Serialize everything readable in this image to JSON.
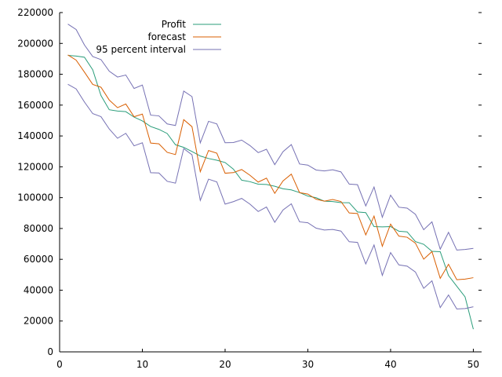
{
  "chart_data": {
    "type": "line",
    "xlim": [
      0,
      51
    ],
    "ylim": [
      0,
      220000
    ],
    "xticks": [
      0,
      10,
      20,
      30,
      40,
      50
    ],
    "yticks": [
      0,
      20000,
      40000,
      60000,
      80000,
      100000,
      120000,
      140000,
      160000,
      180000,
      200000,
      220000
    ],
    "grid": false,
    "legend_position": "top-center",
    "x": [
      1,
      2,
      3,
      4,
      5,
      6,
      7,
      8,
      9,
      10,
      11,
      12,
      13,
      14,
      15,
      16,
      17,
      18,
      19,
      20,
      21,
      22,
      23,
      24,
      25,
      26,
      27,
      28,
      29,
      30,
      31,
      32,
      33,
      34,
      35,
      36,
      37,
      38,
      39,
      40,
      41,
      42,
      43,
      44,
      45,
      46,
      47,
      48,
      49,
      50
    ],
    "series": [
      {
        "name": "Profit",
        "color": "#2a9d7a",
        "values": [
          192262,
          191792,
          191050,
          182902,
          166188,
          156991,
          156123,
          155753,
          152212,
          149760,
          146122,
          144259,
          141586,
          134307,
          132603,
          129917,
          126993,
          125371,
          124267,
          122777,
          118474,
          111313,
          110352,
          108734,
          108552,
          107404,
          105733,
          105008,
          103282,
          101004,
          99938,
          97684,
          97483,
          96779,
          96713,
          90709,
          90299,
          81230,
          81006,
          81230,
          78240,
          77799,
          71499,
          69760,
          65201,
          64927,
          49491,
          42560,
          35674,
          14681
        ]
      },
      {
        "name": "forecast",
        "color": "#d95f02",
        "values": [
          192521,
          189156,
          181406,
          173429,
          171576,
          163270,
          158344,
          160702,
          152451,
          154196,
          135406,
          134875,
          129389,
          127924,
          150574,
          146000,
          116811,
          130580,
          128802,
          115833,
          116218,
          118219,
          114507,
          110066,
          112666,
          102779,
          110866,
          115233,
          103254,
          102321,
          98977,
          97723,
          98760,
          97500,
          90059,
          89696,
          75851,
          88058,
          68497,
          82832,
          75055,
          74327,
          70497,
          60100,
          65024,
          47669,
          56789,
          46812,
          47200,
          48096
        ]
      },
      {
        "name": "95 percent interval",
        "color": "#7570b3",
        "values": [
          212500,
          209000,
          199000,
          191500,
          189500,
          182000,
          178200,
          179500,
          170800,
          173000,
          153500,
          153000,
          147800,
          146800,
          169100,
          165500,
          135500,
          149500,
          147800,
          135600,
          135700,
          137300,
          133800,
          129200,
          131400,
          121400,
          129800,
          134400,
          121800,
          121100,
          117900,
          117300,
          118100,
          116700,
          108800,
          108400,
          94600,
          106900,
          87300,
          101600,
          93800,
          93200,
          89200,
          79200,
          84300,
          66600,
          77500,
          66000,
          66400,
          67100
        ]
      },
      {
        "name": "95 percent interval lower",
        "color": "#7570b3",
        "values": [
          173500,
          170500,
          162000,
          154500,
          152500,
          144500,
          138500,
          141700,
          133600,
          135600,
          116200,
          116000,
          110600,
          109400,
          131800,
          127800,
          98200,
          112000,
          110200,
          95800,
          97400,
          99500,
          95800,
          91000,
          93900,
          84000,
          92000,
          96000,
          84300,
          83700,
          80200,
          79000,
          79400,
          78300,
          71400,
          71000,
          57000,
          69300,
          49600,
          64400,
          56400,
          55600,
          51800,
          41200,
          46100,
          28700,
          36900,
          27800,
          28100,
          29200
        ]
      }
    ]
  }
}
